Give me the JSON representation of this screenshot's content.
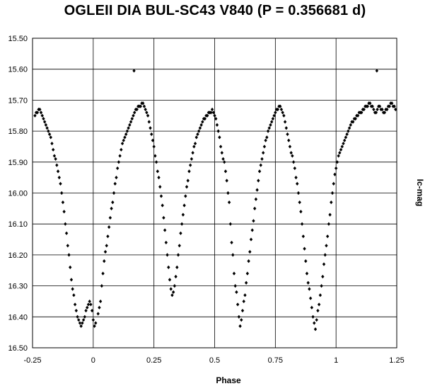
{
  "chart_data": {
    "type": "scatter",
    "title": "OGLEII DIA BUL-SC43 V840 (P = 0.356681 d)",
    "xlabel": "Phase",
    "ylabel": "Ic-mag",
    "xlim": [
      -0.25,
      1.25
    ],
    "ylim": [
      16.5,
      15.5
    ],
    "y_inverted": true,
    "grid": true,
    "legend": "none",
    "marker": "diamond",
    "marker_color": "#000000",
    "x_ticks": [
      "-0.25",
      "0",
      "0.25",
      "0.5",
      "0.75",
      "1",
      "1.25"
    ],
    "x_tick_values": [
      -0.25,
      0,
      0.25,
      0.5,
      0.75,
      1,
      1.25
    ],
    "y_ticks": [
      "15.50",
      "15.60",
      "15.70",
      "15.80",
      "15.90",
      "16.00",
      "16.10",
      "16.20",
      "16.30",
      "16.40",
      "16.50"
    ],
    "y_tick_values": [
      15.5,
      15.6,
      15.7,
      15.8,
      15.9,
      16.0,
      16.1,
      16.2,
      16.3,
      16.4,
      16.5
    ],
    "series": [
      {
        "points": [
          [
            0.01,
            16.42
          ],
          [
            0.02,
            16.39
          ],
          [
            0.025,
            16.37
          ],
          [
            0.03,
            16.35
          ],
          [
            0.035,
            16.3
          ],
          [
            0.04,
            16.26
          ],
          [
            0.045,
            16.22
          ],
          [
            0.05,
            16.19
          ],
          [
            0.055,
            16.17
          ],
          [
            0.06,
            16.14
          ],
          [
            0.065,
            16.11
          ],
          [
            0.07,
            16.08
          ],
          [
            0.075,
            16.05
          ],
          [
            0.08,
            16.03
          ],
          [
            0.085,
            16.0
          ],
          [
            0.09,
            15.97
          ],
          [
            0.095,
            15.95
          ],
          [
            0.1,
            15.92
          ],
          [
            0.105,
            15.9
          ],
          [
            0.11,
            15.88
          ],
          [
            0.115,
            15.86
          ],
          [
            0.12,
            15.84
          ],
          [
            0.125,
            15.83
          ],
          [
            0.13,
            15.82
          ],
          [
            0.135,
            15.81
          ],
          [
            0.14,
            15.8
          ],
          [
            0.145,
            15.79
          ],
          [
            0.15,
            15.78
          ],
          [
            0.155,
            15.77
          ],
          [
            0.16,
            15.76
          ],
          [
            0.165,
            15.75
          ],
          [
            0.17,
            15.74
          ],
          [
            0.175,
            15.73
          ],
          [
            0.18,
            15.73
          ],
          [
            0.185,
            15.72
          ],
          [
            0.19,
            15.72
          ],
          [
            0.195,
            15.72
          ],
          [
            0.2,
            15.71
          ],
          [
            0.205,
            15.71
          ],
          [
            0.21,
            15.72
          ],
          [
            0.215,
            15.73
          ],
          [
            0.22,
            15.74
          ],
          [
            0.225,
            15.75
          ],
          [
            0.23,
            15.77
          ],
          [
            0.235,
            15.79
          ],
          [
            0.24,
            15.81
          ],
          [
            0.245,
            15.83
          ],
          [
            0.25,
            15.85
          ],
          [
            0.255,
            15.88
          ],
          [
            0.26,
            15.9
          ],
          [
            0.265,
            15.93
          ],
          [
            0.27,
            15.95
          ],
          [
            0.275,
            15.98
          ],
          [
            0.28,
            16.01
          ],
          [
            0.285,
            16.04
          ],
          [
            0.29,
            16.08
          ],
          [
            0.295,
            16.12
          ],
          [
            0.3,
            16.16
          ],
          [
            0.305,
            16.2
          ],
          [
            0.31,
            16.24
          ],
          [
            0.315,
            16.28
          ],
          [
            0.32,
            16.31
          ],
          [
            0.325,
            16.33
          ],
          [
            0.33,
            16.32
          ],
          [
            0.335,
            16.3
          ],
          [
            0.34,
            16.27
          ],
          [
            0.345,
            16.24
          ],
          [
            0.35,
            16.2
          ],
          [
            0.355,
            16.17
          ],
          [
            0.36,
            16.13
          ],
          [
            0.365,
            16.1
          ],
          [
            0.37,
            16.07
          ],
          [
            0.375,
            16.04
          ],
          [
            0.38,
            16.01
          ],
          [
            0.385,
            15.98
          ],
          [
            0.39,
            15.96
          ],
          [
            0.395,
            15.93
          ],
          [
            0.4,
            15.91
          ],
          [
            0.405,
            15.89
          ],
          [
            0.41,
            15.87
          ],
          [
            0.415,
            15.85
          ],
          [
            0.42,
            15.84
          ],
          [
            0.425,
            15.82
          ],
          [
            0.43,
            15.81
          ],
          [
            0.435,
            15.8
          ],
          [
            0.44,
            15.79
          ],
          [
            0.445,
            15.78
          ],
          [
            0.45,
            15.77
          ],
          [
            0.455,
            15.76
          ],
          [
            0.46,
            15.76
          ],
          [
            0.465,
            15.75
          ],
          [
            0.47,
            15.75
          ],
          [
            0.475,
            15.74
          ],
          [
            0.48,
            15.74
          ],
          [
            0.485,
            15.74
          ],
          [
            0.49,
            15.73
          ],
          [
            0.495,
            15.74
          ],
          [
            0.5,
            15.75
          ],
          [
            0.505,
            15.76
          ],
          [
            0.51,
            15.78
          ],
          [
            0.515,
            15.8
          ],
          [
            0.52,
            15.82
          ],
          [
            0.525,
            15.85
          ],
          [
            0.53,
            15.87
          ],
          [
            0.535,
            15.89
          ],
          [
            0.54,
            15.9
          ],
          [
            0.545,
            15.93
          ],
          [
            0.55,
            15.96
          ],
          [
            0.555,
            16.0
          ],
          [
            0.56,
            16.03
          ],
          [
            0.565,
            16.1
          ],
          [
            0.57,
            16.16
          ],
          [
            0.575,
            16.2
          ],
          [
            0.58,
            16.26
          ],
          [
            0.585,
            16.3
          ],
          [
            0.59,
            16.32
          ],
          [
            0.595,
            16.36
          ],
          [
            0.6,
            16.4
          ],
          [
            0.605,
            16.43
          ],
          [
            0.61,
            16.41
          ],
          [
            0.615,
            16.38
          ],
          [
            0.62,
            16.35
          ],
          [
            0.625,
            16.33
          ],
          [
            0.63,
            16.29
          ],
          [
            0.635,
            16.26
          ],
          [
            0.64,
            16.22
          ],
          [
            0.645,
            16.19
          ],
          [
            0.65,
            16.15
          ],
          [
            0.655,
            16.12
          ],
          [
            0.66,
            16.09
          ],
          [
            0.665,
            16.05
          ],
          [
            0.67,
            16.02
          ],
          [
            0.675,
            15.99
          ],
          [
            0.68,
            15.96
          ],
          [
            0.685,
            15.93
          ],
          [
            0.69,
            15.91
          ],
          [
            0.695,
            15.89
          ],
          [
            0.7,
            15.87
          ],
          [
            0.705,
            15.85
          ],
          [
            0.71,
            15.83
          ],
          [
            0.715,
            15.82
          ],
          [
            0.72,
            15.8
          ],
          [
            0.725,
            15.79
          ],
          [
            0.73,
            15.78
          ],
          [
            0.735,
            15.77
          ],
          [
            0.74,
            15.76
          ],
          [
            0.745,
            15.75
          ],
          [
            0.75,
            15.74
          ],
          [
            0.755,
            15.73
          ],
          [
            0.76,
            15.73
          ],
          [
            0.765,
            15.72
          ],
          [
            0.77,
            15.72
          ],
          [
            0.775,
            15.73
          ],
          [
            0.78,
            15.74
          ],
          [
            0.785,
            15.75
          ],
          [
            0.79,
            15.77
          ],
          [
            0.795,
            15.79
          ],
          [
            0.8,
            15.81
          ],
          [
            0.805,
            15.83
          ],
          [
            0.81,
            15.85
          ],
          [
            0.815,
            15.87
          ],
          [
            0.82,
            15.88
          ],
          [
            0.825,
            15.9
          ],
          [
            0.83,
            15.92
          ],
          [
            0.835,
            15.95
          ],
          [
            0.84,
            15.97
          ],
          [
            0.845,
            16.0
          ],
          [
            0.85,
            16.03
          ],
          [
            0.855,
            16.06
          ],
          [
            0.86,
            16.1
          ],
          [
            0.865,
            16.14
          ],
          [
            0.87,
            16.18
          ],
          [
            0.875,
            16.22
          ],
          [
            0.88,
            16.26
          ],
          [
            0.885,
            16.29
          ],
          [
            0.89,
            16.31
          ],
          [
            0.895,
            16.34
          ],
          [
            0.9,
            16.37
          ],
          [
            0.905,
            16.4
          ],
          [
            0.91,
            16.42
          ],
          [
            0.915,
            16.44
          ],
          [
            0.92,
            16.41
          ],
          [
            0.925,
            16.38
          ],
          [
            0.93,
            16.36
          ],
          [
            0.935,
            16.33
          ],
          [
            0.94,
            16.3
          ],
          [
            0.945,
            16.27
          ],
          [
            0.95,
            16.23
          ],
          [
            0.955,
            16.2
          ],
          [
            0.96,
            16.17
          ],
          [
            0.965,
            16.14
          ],
          [
            0.97,
            16.1
          ],
          [
            0.975,
            16.07
          ],
          [
            0.98,
            16.03
          ],
          [
            0.985,
            16.0
          ],
          [
            0.99,
            15.97
          ],
          [
            0.995,
            15.94
          ],
          [
            1.0,
            15.92
          ],
          [
            0.168,
            15.605
          ],
          [
            1.168,
            15.605
          ],
          [
            -0.24,
            15.75
          ],
          [
            -0.235,
            15.74
          ],
          [
            -0.23,
            15.74
          ],
          [
            -0.225,
            15.73
          ],
          [
            -0.22,
            15.73
          ],
          [
            -0.215,
            15.74
          ],
          [
            -0.21,
            15.75
          ],
          [
            -0.205,
            15.76
          ],
          [
            -0.2,
            15.77
          ],
          [
            -0.195,
            15.78
          ],
          [
            -0.19,
            15.79
          ],
          [
            -0.185,
            15.8
          ],
          [
            -0.18,
            15.81
          ],
          [
            -0.175,
            15.82
          ],
          [
            -0.17,
            15.84
          ],
          [
            -0.165,
            15.86
          ],
          [
            -0.16,
            15.88
          ],
          [
            -0.155,
            15.89
          ],
          [
            -0.15,
            15.91
          ],
          [
            -0.145,
            15.93
          ],
          [
            -0.14,
            15.95
          ],
          [
            -0.135,
            15.97
          ],
          [
            -0.13,
            16.0
          ],
          [
            -0.125,
            16.03
          ],
          [
            -0.12,
            16.06
          ],
          [
            -0.115,
            16.1
          ],
          [
            -0.11,
            16.13
          ],
          [
            -0.105,
            16.17
          ],
          [
            -0.1,
            16.2
          ],
          [
            -0.095,
            16.24
          ],
          [
            -0.09,
            16.28
          ],
          [
            -0.085,
            16.31
          ],
          [
            -0.08,
            16.33
          ],
          [
            -0.075,
            16.36
          ],
          [
            -0.07,
            16.38
          ],
          [
            -0.065,
            16.4
          ],
          [
            -0.06,
            16.41
          ],
          [
            -0.055,
            16.42
          ],
          [
            -0.05,
            16.43
          ],
          [
            -0.045,
            16.42
          ],
          [
            -0.04,
            16.41
          ],
          [
            -0.035,
            16.4
          ],
          [
            -0.03,
            16.38
          ],
          [
            -0.025,
            16.37
          ],
          [
            -0.02,
            16.36
          ],
          [
            -0.015,
            16.35
          ],
          [
            -0.01,
            16.36
          ],
          [
            -0.005,
            16.38
          ],
          [
            0.0,
            16.41
          ],
          [
            0.005,
            16.43
          ],
          [
            1.005,
            15.9
          ],
          [
            1.01,
            15.88
          ],
          [
            1.015,
            15.87
          ],
          [
            1.02,
            15.86
          ],
          [
            1.025,
            15.85
          ],
          [
            1.03,
            15.84
          ],
          [
            1.035,
            15.83
          ],
          [
            1.04,
            15.82
          ],
          [
            1.045,
            15.81
          ],
          [
            1.05,
            15.8
          ],
          [
            1.055,
            15.79
          ],
          [
            1.06,
            15.78
          ],
          [
            1.065,
            15.77
          ],
          [
            1.07,
            15.77
          ],
          [
            1.075,
            15.76
          ],
          [
            1.08,
            15.76
          ],
          [
            1.085,
            15.75
          ],
          [
            1.09,
            15.75
          ],
          [
            1.095,
            15.74
          ],
          [
            1.1,
            15.74
          ],
          [
            1.105,
            15.74
          ],
          [
            1.11,
            15.73
          ],
          [
            1.115,
            15.73
          ],
          [
            1.12,
            15.72
          ],
          [
            1.125,
            15.72
          ],
          [
            1.13,
            15.72
          ],
          [
            1.135,
            15.71
          ],
          [
            1.14,
            15.71
          ],
          [
            1.145,
            15.72
          ],
          [
            1.15,
            15.72
          ],
          [
            1.155,
            15.73
          ],
          [
            1.16,
            15.74
          ],
          [
            1.165,
            15.74
          ],
          [
            1.17,
            15.73
          ],
          [
            1.175,
            15.72
          ],
          [
            1.18,
            15.72
          ],
          [
            1.185,
            15.73
          ],
          [
            1.19,
            15.73
          ],
          [
            1.195,
            15.74
          ],
          [
            1.2,
            15.74
          ],
          [
            1.205,
            15.73
          ],
          [
            1.21,
            15.73
          ],
          [
            1.215,
            15.72
          ],
          [
            1.22,
            15.72
          ],
          [
            1.225,
            15.71
          ],
          [
            1.23,
            15.71
          ],
          [
            1.235,
            15.72
          ],
          [
            1.24,
            15.72
          ],
          [
            1.245,
            15.73
          ]
        ]
      }
    ]
  }
}
